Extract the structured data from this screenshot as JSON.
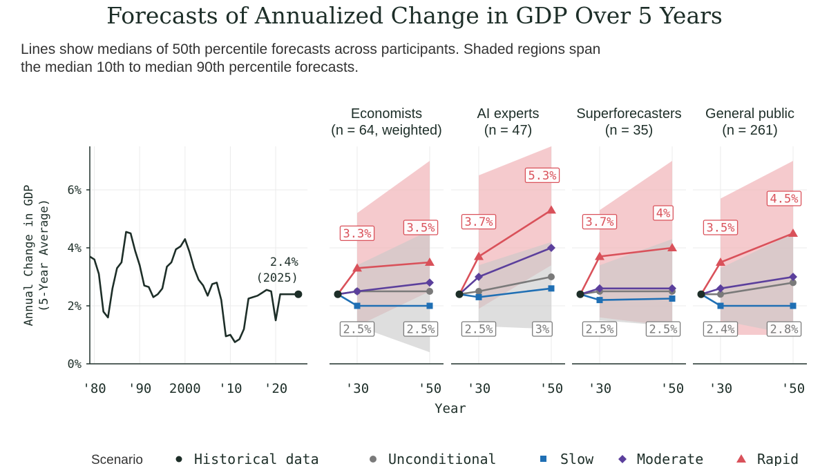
{
  "chart_data": {
    "type": "line",
    "title": "Forecasts of Annualized Change in GDP Over 5 Years",
    "subtitle_line1": "Lines show medians of 50th percentile forecasts across participants. Shaded regions span",
    "subtitle_line2": "the median 10th to median 90th percentile forecasts.",
    "ylabel_line1": "Annual Change in GDP",
    "ylabel_line2": "(5-Year Average)",
    "xlabel": "Year",
    "ylim": [
      0,
      7.5
    ],
    "yticks": [
      0,
      2,
      4,
      6
    ],
    "ytick_labels": [
      "0%",
      "2%",
      "4%",
      "6%"
    ],
    "colors": {
      "historical": "#1d2e28",
      "unconditional": "#7a7a7a",
      "slow": "#1f6fb4",
      "moderate": "#5b3f9c",
      "rapid": "#d9515a",
      "band_unconditional": "#c8c8c8",
      "band_rapid": "#f2b8bc"
    },
    "historical": {
      "xlim": [
        1979,
        2027
      ],
      "xticks": [
        1980,
        1990,
        2000,
        2010,
        2020
      ],
      "xtick_labels": [
        "'80",
        "'90",
        "2000",
        "'10",
        "'20"
      ],
      "x": [
        1979,
        1980,
        1981,
        1982,
        1983,
        1984,
        1985,
        1986,
        1987,
        1988,
        1989,
        1990,
        1991,
        1992,
        1993,
        1994,
        1995,
        1996,
        1997,
        1998,
        1999,
        2000,
        2001,
        2002,
        2003,
        2004,
        2005,
        2006,
        2007,
        2008,
        2009,
        2010,
        2011,
        2012,
        2013,
        2014,
        2015,
        2016,
        2017,
        2018,
        2019,
        2020,
        2021,
        2022,
        2023,
        2024,
        2025
      ],
      "y": [
        3.7,
        3.6,
        3.1,
        1.8,
        1.6,
        2.6,
        3.3,
        3.5,
        4.55,
        4.5,
        3.9,
        3.4,
        2.7,
        2.65,
        2.3,
        2.4,
        2.6,
        3.35,
        3.5,
        3.95,
        4.05,
        4.3,
        3.85,
        3.3,
        2.9,
        2.7,
        2.35,
        2.75,
        2.8,
        2.2,
        0.95,
        1.0,
        0.75,
        0.85,
        1.2,
        2.25,
        2.3,
        2.35,
        2.45,
        2.55,
        2.5,
        1.5,
        2.4,
        2.4,
        2.4,
        2.4,
        2.4
      ],
      "annotation_line1": "2.4%",
      "annotation_line2": "(2025)"
    },
    "panels": [
      {
        "title": "Economists",
        "subtitle": "(n = 64, weighted)",
        "xticks": [
          "'30",
          "'50"
        ],
        "series": [
          {
            "name": "Unconditional",
            "values": [
              2.5,
              2.5
            ]
          },
          {
            "name": "Slow",
            "values": [
              2.0,
              2.0
            ]
          },
          {
            "name": "Moderate",
            "values": [
              2.5,
              2.8
            ]
          },
          {
            "name": "Rapid",
            "values": [
              3.3,
              3.5
            ]
          }
        ],
        "band_unconditional": {
          "low": [
            1.3,
            0.4
          ],
          "high": [
            3.4,
            4.6
          ]
        },
        "band_rapid": {
          "low": [
            1.3,
            2.5
          ],
          "high": [
            5.2,
            7.0
          ]
        },
        "labels_rapid": [
          "3.3%",
          "3.5%"
        ],
        "labels_unconditional": [
          "2.5%",
          "2.5%"
        ]
      },
      {
        "title": "AI experts",
        "subtitle": "(n = 47)",
        "xticks": [
          "'30",
          "'50"
        ],
        "series": [
          {
            "name": "Unconditional",
            "values": [
              2.5,
              3.0
            ]
          },
          {
            "name": "Slow",
            "values": [
              2.3,
              2.6
            ]
          },
          {
            "name": "Moderate",
            "values": [
              3.0,
              4.0
            ]
          },
          {
            "name": "Rapid",
            "values": [
              3.7,
              5.3
            ]
          }
        ],
        "band_unconditional": {
          "low": [
            1.3,
            1.2
          ],
          "high": [
            3.4,
            4.2
          ]
        },
        "band_rapid": {
          "low": [
            1.9,
            3.4
          ],
          "high": [
            6.5,
            8.0
          ]
        },
        "labels_rapid": [
          "3.7%",
          "5.3%"
        ],
        "labels_unconditional": [
          "2.5%",
          "3%"
        ]
      },
      {
        "title": "Superforecasters",
        "subtitle": "(n = 35)",
        "xticks": [
          "'30",
          "'50"
        ],
        "series": [
          {
            "name": "Unconditional",
            "values": [
              2.5,
              2.5
            ]
          },
          {
            "name": "Slow",
            "values": [
              2.2,
              2.25
            ]
          },
          {
            "name": "Moderate",
            "values": [
              2.6,
              2.6
            ]
          },
          {
            "name": "Rapid",
            "values": [
              3.7,
              4.0
            ]
          }
        ],
        "band_unconditional": {
          "low": [
            1.5,
            1.3
          ],
          "high": [
            3.4,
            4.3
          ]
        },
        "band_rapid": {
          "low": [
            1.6,
            1.3
          ],
          "high": [
            5.3,
            7.0
          ]
        },
        "labels_rapid": [
          "3.7%",
          "4%"
        ],
        "labels_unconditional": [
          "2.5%",
          "2.5%"
        ]
      },
      {
        "title": "General public",
        "subtitle": "(n = 261)",
        "xticks": [
          "'30",
          "'50"
        ],
        "series": [
          {
            "name": "Unconditional",
            "values": [
              2.4,
              2.8
            ]
          },
          {
            "name": "Slow",
            "values": [
              2.0,
              2.0
            ]
          },
          {
            "name": "Moderate",
            "values": [
              2.6,
              3.0
            ]
          },
          {
            "name": "Rapid",
            "values": [
              3.5,
              4.5
            ]
          }
        ],
        "band_unconditional": {
          "low": [
            1.5,
            1.0
          ],
          "high": [
            3.3,
            4.5
          ]
        },
        "band_rapid": {
          "low": [
            1.0,
            1.0
          ],
          "high": [
            5.7,
            7.0
          ]
        },
        "labels_rapid": [
          "3.5%",
          "4.5%"
        ],
        "labels_unconditional": [
          "2.4%",
          "2.8%"
        ]
      }
    ],
    "legend": {
      "title": "Scenario",
      "items": [
        "Historical data",
        "Unconditional",
        "Slow",
        "Moderate",
        "Rapid"
      ]
    }
  }
}
